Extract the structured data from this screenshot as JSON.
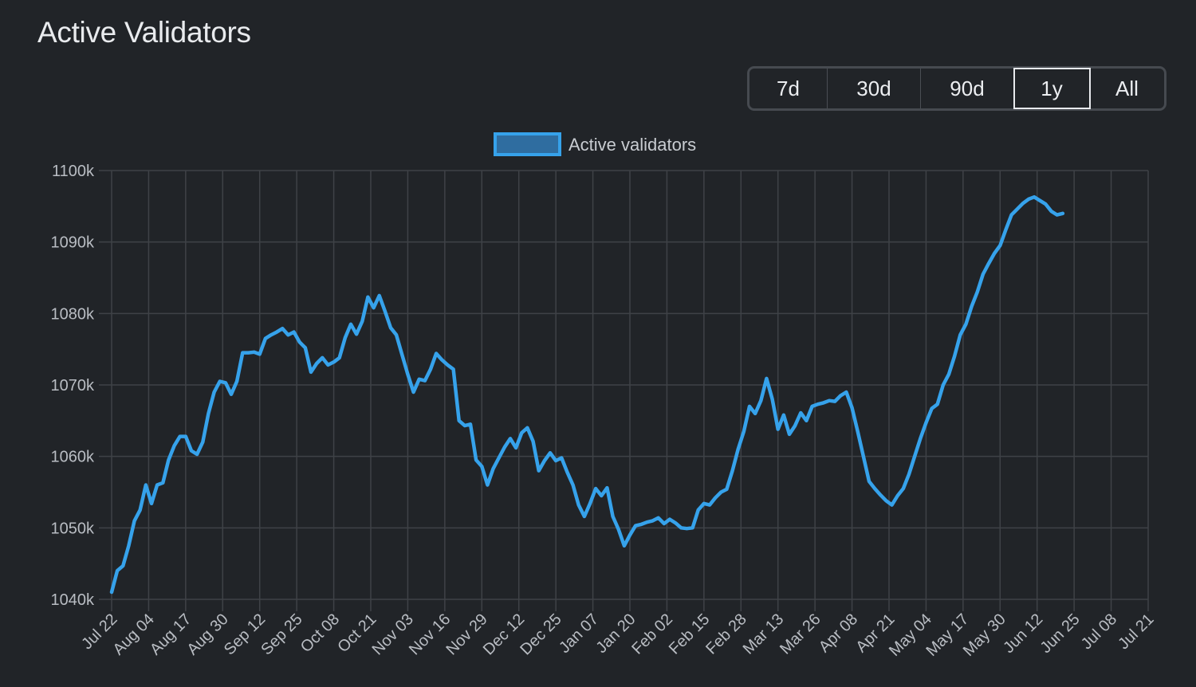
{
  "header": {
    "title": "Active Validators"
  },
  "range_selector": {
    "options": [
      {
        "label": "7d",
        "active": false
      },
      {
        "label": "30d",
        "active": false
      },
      {
        "label": "90d",
        "active": false
      },
      {
        "label": "1y",
        "active": true
      },
      {
        "label": "All",
        "active": false
      }
    ]
  },
  "colors": {
    "background": "#212428",
    "line": "#36a2eb",
    "legend_fill": "#2f6da0",
    "grid": "#3f4247",
    "tick_text": "#b9bdc3"
  },
  "chart_data": {
    "type": "line",
    "title": "Active Validators",
    "xlabel": "",
    "ylabel": "",
    "legend": {
      "position": "top",
      "entries": [
        "Active validators"
      ]
    },
    "grid": true,
    "ylim": [
      1040,
      1100
    ],
    "y_unit": "k",
    "y_ticks": [
      "1100k",
      "1090k",
      "1080k",
      "1070k",
      "1060k",
      "1050k",
      "1040k"
    ],
    "x_ticks": [
      "Jul 22",
      "Aug 04",
      "Aug 17",
      "Aug 30",
      "Sep 12",
      "Sep 25",
      "Oct 08",
      "Oct 21",
      "Nov 03",
      "Nov 16",
      "Nov 29",
      "Dec 12",
      "Dec 25",
      "Jan 07",
      "Jan 20",
      "Feb 02",
      "Feb 15",
      "Feb 28",
      "Mar 13",
      "Mar 26",
      "Apr 08",
      "Apr 21",
      "May 04",
      "May 17",
      "May 30",
      "Jun 12",
      "Jun 25",
      "Jul 08",
      "Jul 21"
    ],
    "x_tick_interval_days": 13,
    "series": [
      {
        "name": "Active validators",
        "day_offset_from_Jul_22": [
          0,
          2,
          4,
          6,
          8,
          10,
          12,
          14,
          16,
          18,
          20,
          22,
          24,
          26,
          28,
          30,
          32,
          34,
          36,
          38,
          40,
          42,
          44,
          46,
          48,
          50,
          52,
          54,
          56,
          58,
          60,
          62,
          64,
          66,
          68,
          70,
          72,
          74,
          76,
          78,
          80,
          82,
          84,
          86,
          88,
          90,
          92,
          94,
          96,
          98,
          100,
          102,
          104,
          106,
          108,
          110,
          112,
          114,
          116,
          118,
          120,
          122,
          124,
          126,
          128,
          130,
          132,
          134,
          136,
          138,
          140,
          142,
          144,
          146,
          148,
          150,
          152,
          154,
          156,
          158,
          160,
          162,
          164,
          166,
          168,
          170,
          172,
          174,
          176,
          178,
          180,
          182,
          184,
          186,
          188,
          190,
          192,
          194,
          196,
          198,
          200,
          202,
          204,
          206,
          208,
          210,
          212,
          214,
          216,
          218,
          220,
          222,
          224,
          226,
          228,
          230,
          232,
          234,
          236,
          238,
          240,
          242,
          244,
          246,
          248,
          250,
          252,
          254,
          256,
          258,
          260,
          262,
          264,
          266,
          268,
          270,
          272,
          274,
          276,
          278,
          280,
          282,
          284,
          286,
          288,
          290,
          292,
          294,
          296,
          298,
          300,
          302,
          304,
          306,
          308,
          310,
          312,
          314,
          316,
          318,
          320,
          322,
          324,
          326,
          328,
          330,
          332,
          334,
          336,
          338,
          340,
          342,
          344,
          346,
          348,
          350,
          352,
          354,
          356,
          358,
          360,
          362,
          364
        ],
        "values": [
          1041.0,
          1044.0,
          1044.7,
          1047.5,
          1051.0,
          1052.5,
          1056.0,
          1053.4,
          1056.0,
          1056.3,
          1059.5,
          1061.5,
          1062.8,
          1062.8,
          1060.8,
          1060.3,
          1062.0,
          1066.0,
          1069.0,
          1070.5,
          1070.3,
          1068.7,
          1070.5,
          1074.5,
          1074.5,
          1074.6,
          1074.3,
          1076.5,
          1077.0,
          1077.4,
          1077.9,
          1077.0,
          1077.4,
          1076.0,
          1075.2,
          1071.8,
          1073.0,
          1073.8,
          1072.8,
          1073.2,
          1073.8,
          1076.6,
          1078.5,
          1077.1,
          1078.9,
          1082.3,
          1080.8,
          1082.5,
          1080.3,
          1078.0,
          1077.0,
          1074.2,
          1071.5,
          1069.0,
          1070.8,
          1070.6,
          1072.2,
          1074.4,
          1073.5,
          1072.8,
          1072.2,
          1065.0,
          1064.3,
          1064.5,
          1059.5,
          1058.6,
          1056.0,
          1058.3,
          1059.8,
          1061.3,
          1062.5,
          1061.2,
          1063.3,
          1064.0,
          1062.1,
          1058.0,
          1059.4,
          1060.5,
          1059.4,
          1059.8,
          1057.8,
          1056.0,
          1053.2,
          1051.6,
          1053.4,
          1055.5,
          1054.5,
          1055.6,
          1051.6,
          1049.8,
          1047.5,
          1049.0,
          1050.3,
          1050.5,
          1050.8,
          1051.0,
          1051.4,
          1050.6,
          1051.2,
          1050.7,
          1050.0,
          1049.9,
          1050.0,
          1052.5,
          1053.4,
          1053.2,
          1054.2,
          1055.0,
          1055.4,
          1058.0,
          1061.0,
          1063.5,
          1067.0,
          1066.0,
          1067.8,
          1070.9,
          1068.0,
          1063.8,
          1065.8,
          1063.1,
          1064.3,
          1066.1,
          1065.0,
          1067.0,
          1067.3,
          1067.5,
          1067.8,
          1067.7,
          1068.5,
          1069.0,
          1066.8,
          1063.5,
          1060.0,
          1056.5,
          1055.5,
          1054.6,
          1053.8,
          1053.2,
          1054.5,
          1055.5,
          1057.5,
          1060.0,
          1062.5,
          1064.7,
          1066.7,
          1067.3,
          1070.0,
          1071.5,
          1074.0,
          1077.0,
          1078.5,
          1081.0,
          1083.0,
          1085.5,
          1087.0,
          1088.4,
          1089.5,
          1091.7,
          1093.8,
          1094.6,
          1095.4,
          1096.0,
          1096.3,
          1095.8,
          1095.3,
          1094.3,
          1093.8,
          1094.0
        ]
      }
    ]
  },
  "legend": {
    "label": "Active validators"
  }
}
